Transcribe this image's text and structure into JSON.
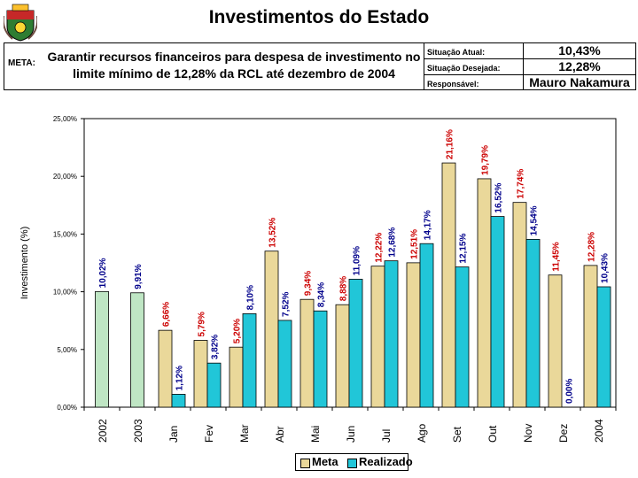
{
  "page": {
    "title": "Investimentos do Estado"
  },
  "header": {
    "meta_label": "META:",
    "meta_desc_line1": "Garantir recursos financeiros para despesa de investimento no",
    "meta_desc_line2": "limite mínimo de 12,28% da RCL até dezembro de 2004",
    "situacao_atual_label": "Situação Atual:",
    "situacao_atual_value": "10,43%",
    "situacao_desejada_label": "Situação Desejada:",
    "situacao_desejada_value": "12,28%",
    "responsavel_label": "Responsável:",
    "responsavel_value": "Mauro Nakamura"
  },
  "colors": {
    "meta": "#EAD89A",
    "realizado": "#21C6D8",
    "year_bar": "#BFE6C4",
    "meta_label_color": "#CC0000",
    "realizado_label_color": "#00008B",
    "plot_bg": "#ffffff"
  },
  "chart_data": {
    "type": "bar",
    "title": "",
    "ylabel": "Investimento (%)",
    "xlabel": "",
    "ylim": [
      0,
      25
    ],
    "yticks": [
      "0,00%",
      "5,00%",
      "10,00%",
      "15,00%",
      "20,00%",
      "25,00%"
    ],
    "categories": [
      "2002",
      "2003",
      "Jan",
      "Fev",
      "Mar",
      "Abr",
      "Mai",
      "Jun",
      "Jul",
      "Ago",
      "Set",
      "Out",
      "Nov",
      "Dez",
      "2004"
    ],
    "series": [
      {
        "name": "Meta",
        "values": [
          null,
          null,
          6.66,
          5.79,
          5.2,
          13.52,
          9.34,
          8.88,
          12.22,
          12.51,
          21.16,
          19.79,
          17.74,
          11.45,
          12.28
        ],
        "labels": [
          "",
          "",
          "6,66%",
          "5,79%",
          "5,20%",
          "13,52%",
          "9,34%",
          "8,88%",
          "12,22%",
          "12,51%",
          "21,16%",
          "19,79%",
          "17,74%",
          "11,45%",
          "12,28%"
        ]
      },
      {
        "name": "Realizado",
        "values": [
          10.02,
          9.91,
          1.12,
          3.82,
          8.1,
          7.52,
          8.34,
          11.09,
          12.68,
          14.17,
          12.15,
          16.52,
          14.54,
          0.0,
          10.43
        ],
        "labels": [
          "10,02%",
          "9,91%",
          "1,12%",
          "3,82%",
          "8,10%",
          "7,52%",
          "8,34%",
          "11,09%",
          "12,68%",
          "14,17%",
          "12,15%",
          "16,52%",
          "14,54%",
          "0,00%",
          "10,43%"
        ]
      }
    ],
    "legend": [
      "Meta",
      "Realizado"
    ],
    "legend_position": "bottom-center",
    "grid": false
  }
}
